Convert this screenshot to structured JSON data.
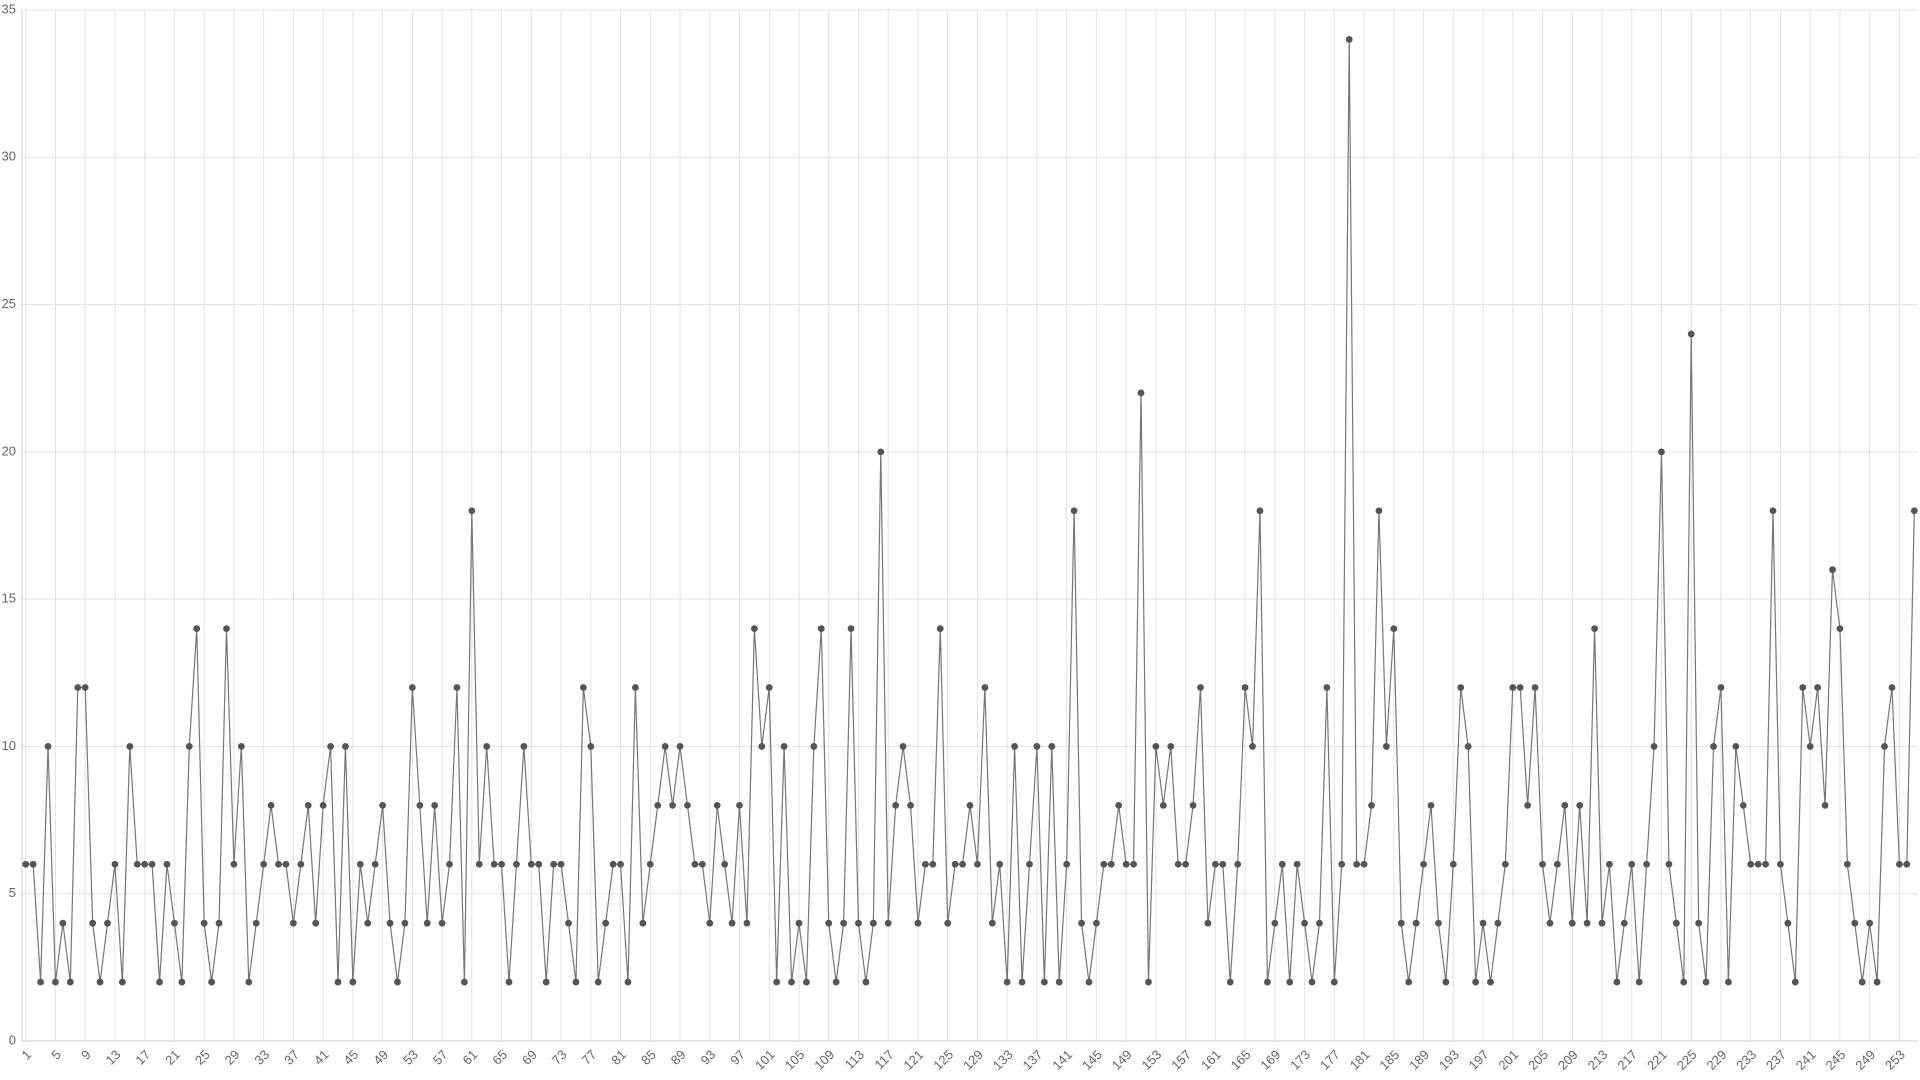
{
  "chart_data": {
    "type": "line",
    "categories": [
      1,
      null,
      null,
      null,
      5,
      null,
      null,
      null,
      9,
      null,
      null,
      null,
      13,
      null,
      null,
      null,
      17,
      null,
      null,
      null,
      21,
      null,
      null,
      null,
      25,
      null,
      null,
      null,
      29,
      null,
      null,
      null,
      33,
      null,
      null,
      null,
      37,
      null,
      null,
      null,
      41,
      null,
      null,
      null,
      45,
      null,
      null,
      null,
      49,
      null,
      null,
      null,
      53,
      null,
      null,
      null,
      57,
      null,
      null,
      null,
      61,
      null,
      null,
      null,
      65,
      null,
      null,
      null,
      69,
      null,
      null,
      null,
      73,
      null,
      null,
      null,
      77,
      null,
      null,
      null,
      81,
      null,
      null,
      null,
      85,
      null,
      null,
      null,
      89,
      null,
      null,
      null,
      93,
      null,
      null,
      null,
      97,
      null,
      null,
      null,
      101,
      null,
      null,
      null,
      105,
      null,
      null,
      null,
      109,
      null,
      null,
      null,
      113,
      null,
      null,
      null,
      117,
      null,
      null,
      null,
      121,
      null,
      null,
      null,
      125,
      null,
      null,
      null,
      129,
      null,
      null,
      null,
      133,
      null,
      null,
      null,
      137,
      null,
      null,
      null,
      141,
      null,
      null,
      null,
      145,
      null,
      null,
      null,
      149,
      null,
      null,
      null,
      153,
      null,
      null,
      null,
      157,
      null,
      null,
      null,
      161,
      null,
      null,
      null,
      165,
      null,
      null,
      null,
      169,
      null,
      null,
      null,
      173,
      null,
      null,
      null,
      177,
      null,
      null,
      null,
      181,
      null,
      null,
      null,
      185,
      null,
      null,
      null,
      189,
      null,
      null,
      null,
      193,
      null,
      null,
      null,
      197,
      null,
      null,
      null,
      201,
      null,
      null,
      null,
      205,
      null,
      null,
      null,
      209,
      null,
      null,
      null,
      213,
      null,
      null,
      null,
      217,
      null,
      null,
      null,
      221,
      null,
      null,
      null,
      225,
      null,
      null,
      null,
      229,
      null,
      null,
      null,
      233,
      null,
      null,
      null,
      237,
      null,
      null,
      null,
      241,
      null,
      null,
      null,
      245,
      null,
      null,
      null,
      249,
      null,
      null,
      null,
      253,
      null,
      null
    ],
    "values": [
      6,
      6,
      2,
      10,
      2,
      4,
      2,
      12,
      12,
      4,
      2,
      4,
      6,
      2,
      10,
      6,
      6,
      6,
      2,
      6,
      4,
      2,
      10,
      14,
      4,
      2,
      4,
      14,
      6,
      10,
      2,
      4,
      6,
      8,
      6,
      6,
      4,
      6,
      8,
      4,
      8,
      10,
      2,
      10,
      2,
      6,
      4,
      6,
      8,
      4,
      2,
      4,
      12,
      8,
      4,
      8,
      4,
      6,
      12,
      2,
      18,
      6,
      10,
      6,
      6,
      2,
      6,
      10,
      6,
      6,
      2,
      6,
      6,
      4,
      2,
      12,
      10,
      2,
      4,
      6,
      6,
      2,
      12,
      4,
      6,
      8,
      10,
      8,
      10,
      8,
      6,
      6,
      4,
      8,
      6,
      4,
      8,
      4,
      14,
      10,
      12,
      2,
      10,
      2,
      4,
      2,
      10,
      14,
      4,
      2,
      4,
      14,
      4,
      2,
      4,
      20,
      4,
      8,
      10,
      8,
      4,
      6,
      6,
      14,
      4,
      6,
      6,
      8,
      6,
      12,
      4,
      6,
      2,
      10,
      2,
      6,
      10,
      2,
      10,
      2,
      6,
      18,
      4,
      2,
      4,
      6,
      6,
      8,
      6,
      6,
      22,
      2,
      10,
      8,
      10,
      6,
      6,
      8,
      12,
      4,
      6,
      6,
      2,
      6,
      12,
      10,
      18,
      2,
      4,
      6,
      2,
      6,
      4,
      2,
      4,
      12,
      2,
      6,
      34,
      6,
      6,
      8,
      18,
      10,
      14,
      4,
      2,
      4,
      6,
      8,
      4,
      2,
      6,
      12,
      10,
      2,
      4,
      2,
      4,
      6,
      12,
      12,
      8,
      12,
      6,
      4,
      6,
      8,
      4,
      8,
      4,
      14,
      4,
      6,
      2,
      4,
      6,
      2,
      6,
      10,
      20,
      6,
      4,
      2,
      24,
      4,
      2,
      10,
      12,
      2,
      10,
      8,
      6,
      6,
      6,
      18,
      6,
      4,
      2,
      12,
      10,
      12,
      8,
      16,
      14,
      6,
      4,
      2,
      4,
      2,
      10,
      12,
      6,
      6,
      18
    ],
    "color": "#777777",
    "point_color": "#555555",
    "ylim": [
      0,
      35
    ],
    "yticks": [
      0,
      5,
      10,
      15,
      20,
      25,
      30,
      35
    ],
    "grid": true
  }
}
